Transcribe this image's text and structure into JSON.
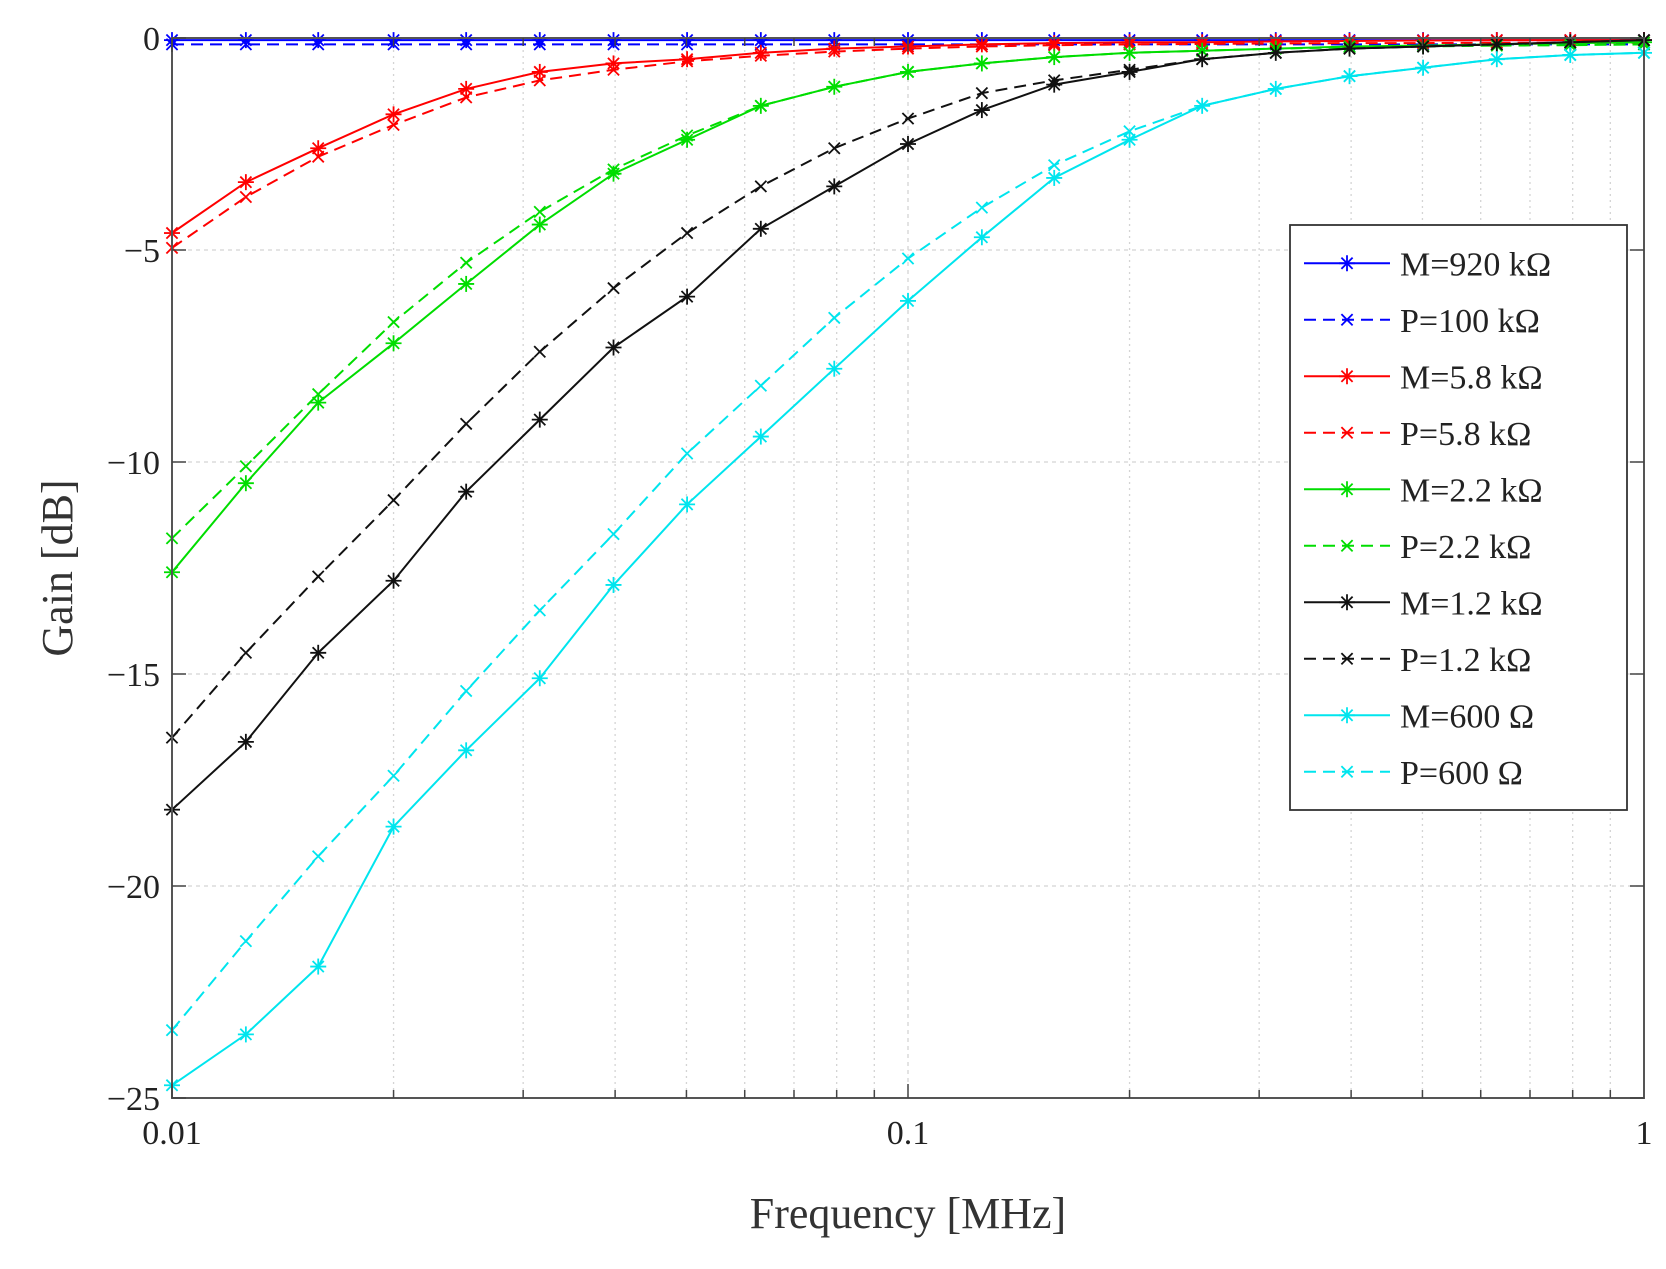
{
  "chart_data": {
    "type": "line",
    "title": "",
    "xlabel": "Frequency [MHz]",
    "ylabel": "Gain [dB]",
    "xscale": "log",
    "xlim": [
      0.01,
      1
    ],
    "ylim": [
      -25,
      0
    ],
    "grid": true,
    "legend_position": "right",
    "x_tick_labels": [
      {
        "value": 0.01,
        "label": "0.01"
      },
      {
        "value": 0.1,
        "label": "0.1"
      },
      {
        "value": 1,
        "label": "1"
      }
    ],
    "y_tick_labels": [
      {
        "value": 0,
        "label": "0"
      },
      {
        "value": -5,
        "label": "−5"
      },
      {
        "value": -10,
        "label": "−10"
      },
      {
        "value": -15,
        "label": "−15"
      },
      {
        "value": -20,
        "label": "−20"
      },
      {
        "value": -25,
        "label": "−25"
      }
    ],
    "x": [
      0.01,
      0.0126,
      0.0158,
      0.02,
      0.0251,
      0.0316,
      0.0398,
      0.0501,
      0.0631,
      0.0794,
      0.1,
      0.126,
      0.158,
      0.2,
      0.251,
      0.316,
      0.398,
      0.501,
      0.631,
      0.794,
      1
    ],
    "series": [
      {
        "name": "M=920 kΩ",
        "color": "#0000ff",
        "style": "solid",
        "marker": "asterisk",
        "values": [
          -0.05,
          -0.05,
          -0.05,
          -0.05,
          -0.05,
          -0.05,
          -0.05,
          -0.05,
          -0.05,
          -0.05,
          -0.05,
          -0.05,
          -0.05,
          -0.05,
          -0.05,
          -0.05,
          -0.05,
          -0.05,
          -0.05,
          -0.05,
          -0.05
        ]
      },
      {
        "name": "P=100 kΩ",
        "color": "#0000ff",
        "style": "dashed",
        "marker": "x",
        "values": [
          -0.15,
          -0.15,
          -0.15,
          -0.15,
          -0.15,
          -0.15,
          -0.15,
          -0.15,
          -0.15,
          -0.15,
          -0.15,
          -0.15,
          -0.15,
          -0.15,
          -0.15,
          -0.15,
          -0.15,
          -0.15,
          -0.15,
          -0.15,
          -0.15
        ]
      },
      {
        "name": "M=5.8 kΩ",
        "color": "#ff0000",
        "style": "solid",
        "marker": "asterisk",
        "values": [
          -4.6,
          -3.4,
          -2.6,
          -1.8,
          -1.2,
          -0.8,
          -0.6,
          -0.5,
          -0.35,
          -0.25,
          -0.2,
          -0.15,
          -0.12,
          -0.1,
          -0.1,
          -0.08,
          -0.07,
          -0.06,
          -0.05,
          -0.05,
          -0.05
        ]
      },
      {
        "name": "P=5.8 kΩ",
        "color": "#ff0000",
        "style": "dashed",
        "marker": "x",
        "values": [
          -4.95,
          -3.75,
          -2.8,
          -2.05,
          -1.4,
          -1.0,
          -0.75,
          -0.55,
          -0.42,
          -0.32,
          -0.25,
          -0.2,
          -0.17,
          -0.15,
          -0.14,
          -0.13,
          -0.12,
          -0.12,
          -0.11,
          -0.11,
          -0.11
        ]
      },
      {
        "name": "M=2.2 kΩ",
        "color": "#00dd00",
        "style": "solid",
        "marker": "asterisk",
        "values": [
          -12.6,
          -10.5,
          -8.6,
          -7.2,
          -5.8,
          -4.4,
          -3.2,
          -2.4,
          -1.6,
          -1.15,
          -0.8,
          -0.6,
          -0.45,
          -0.35,
          -0.3,
          -0.25,
          -0.2,
          -0.18,
          -0.15,
          -0.12,
          -0.1
        ]
      },
      {
        "name": "P=2.2 kΩ",
        "color": "#00dd00",
        "style": "dashed",
        "marker": "x",
        "values": [
          -11.8,
          -10.1,
          -8.4,
          -6.7,
          -5.3,
          -4.1,
          -3.1,
          -2.3,
          -1.6,
          -1.15,
          -0.8,
          -0.6,
          -0.45,
          -0.35,
          -0.3,
          -0.25,
          -0.22,
          -0.2,
          -0.18,
          -0.17,
          -0.15
        ]
      },
      {
        "name": "M=1.2 kΩ",
        "color": "#111111",
        "style": "solid",
        "marker": "asterisk",
        "values": [
          -18.2,
          -16.6,
          -14.5,
          -12.8,
          -10.7,
          -9.0,
          -7.3,
          -6.1,
          -4.5,
          -3.5,
          -2.5,
          -1.7,
          -1.1,
          -0.8,
          -0.5,
          -0.35,
          -0.25,
          -0.2,
          -0.15,
          -0.1,
          -0.05
        ]
      },
      {
        "name": "P=1.2 kΩ",
        "color": "#111111",
        "style": "dashed",
        "marker": "x",
        "values": [
          -16.5,
          -14.5,
          -12.7,
          -10.9,
          -9.1,
          -7.4,
          -5.9,
          -4.6,
          -3.5,
          -2.6,
          -1.9,
          -1.3,
          -1.0,
          -0.75,
          -0.5,
          -0.35,
          -0.25,
          -0.2,
          -0.15,
          -0.1,
          -0.05
        ]
      },
      {
        "name": "M=600 Ω",
        "color": "#00e5ee",
        "style": "solid",
        "marker": "asterisk",
        "values": [
          -24.7,
          -23.5,
          -21.9,
          -18.6,
          -16.8,
          -15.1,
          -12.9,
          -11.0,
          -9.4,
          -7.8,
          -6.2,
          -4.7,
          -3.3,
          -2.4,
          -1.6,
          -1.2,
          -0.9,
          -0.7,
          -0.5,
          -0.4,
          -0.35
        ]
      },
      {
        "name": "P=600 Ω",
        "color": "#00e5ee",
        "style": "dashed",
        "marker": "x",
        "values": [
          -23.4,
          -21.3,
          -19.3,
          -17.4,
          -15.4,
          -13.5,
          -11.7,
          -9.8,
          -8.2,
          -6.6,
          -5.2,
          -4.0,
          -3.0,
          -2.2,
          -1.6,
          -1.2,
          -0.9,
          -0.7,
          -0.5,
          -0.4,
          -0.35
        ]
      }
    ]
  }
}
